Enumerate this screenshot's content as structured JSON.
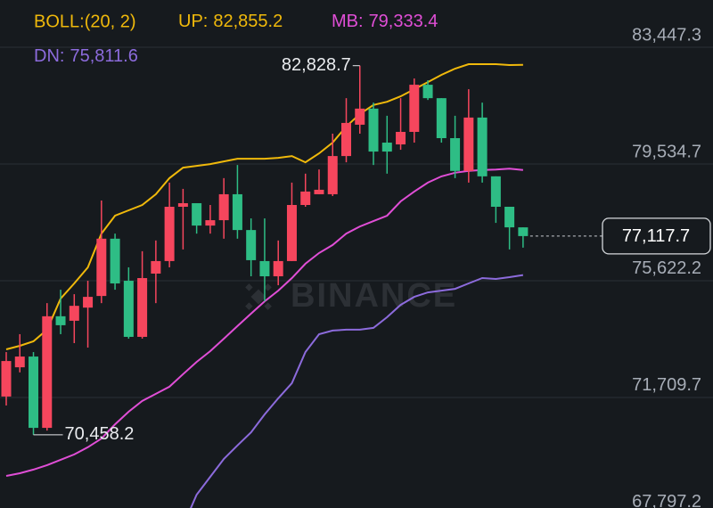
{
  "chart_data": {
    "type": "candlestick",
    "watermark": "BINANCE",
    "ylim": [
      68004,
      85030
    ],
    "yticks": [
      {
        "value": 83447.3,
        "label": "83,447.3"
      },
      {
        "value": 79534.7,
        "label": "79,534.7"
      },
      {
        "value": 75622.2,
        "label": "75,622.2"
      },
      {
        "value": 71709.7,
        "label": "71,709.7"
      },
      {
        "value": 67797.2,
        "label": "67,797.2"
      }
    ],
    "grid": true,
    "up_color": "#f6465d",
    "down_color": "#2ebd85",
    "candles": {
      "open": [
        71740,
        72720,
        73080,
        70690,
        74430,
        74280,
        74720,
        75110,
        77030,
        75620,
        73740,
        75860,
        76280,
        78100,
        78220,
        77470,
        77650,
        78520,
        77320,
        76280,
        75770,
        76280,
        78160,
        78520,
        78520,
        79800,
        80850,
        81390,
        80250,
        80190,
        80610,
        82190,
        81740,
        80400,
        79300,
        81090,
        79120,
        78100,
        77410
      ],
      "high": [
        73230,
        73830,
        73230,
        74870,
        75320,
        75170,
        75620,
        78310,
        77200,
        76070,
        76610,
        76970,
        78910,
        78700,
        78220,
        78160,
        79060,
        79500,
        77710,
        77710,
        76970,
        78910,
        79210,
        79350,
        80550,
        81740,
        82828.7,
        81590,
        81150,
        81740,
        82400,
        82340,
        81740,
        81150,
        82040,
        81590,
        79120,
        78100,
        77410
      ],
      "low": [
        71440,
        72550,
        70458.2,
        70600,
        73830,
        73530,
        73380,
        74870,
        75320,
        73680,
        73680,
        74870,
        76070,
        76670,
        77200,
        77200,
        77030,
        77030,
        75770,
        74930,
        75470,
        76280,
        78100,
        78520,
        78460,
        79590,
        80550,
        79500,
        79210,
        80010,
        80250,
        81680,
        80250,
        79060,
        78910,
        78910,
        77560,
        76670,
        76730
      ],
      "close": [
        72930,
        73080,
        70690,
        74430,
        74130,
        74780,
        75080,
        77030,
        75530,
        73740,
        75710,
        76280,
        78100,
        78220,
        77470,
        77650,
        78520,
        77320,
        76310,
        75770,
        76280,
        78160,
        78610,
        78670,
        79800,
        80910,
        81390,
        79950,
        79950,
        80610,
        82190,
        81740,
        80400,
        79300,
        81090,
        79120,
        78100,
        77410,
        77117.7
      ]
    },
    "indicator": {
      "label": "BOLL:(20, 2)",
      "color": "#f0b90b",
      "series": [
        {
          "name": "UP:",
          "color": "#f0b90b",
          "legend_value": {
            "value": 82855.2,
            "label": "82,855.2"
          },
          "values": [
            73320,
            73440,
            73590,
            73980,
            75020,
            75530,
            76070,
            77200,
            77800,
            77980,
            78160,
            78520,
            79060,
            79410,
            79470,
            79530,
            79620,
            79710,
            79710,
            79710,
            79740,
            79800,
            79590,
            79890,
            80250,
            80790,
            81210,
            81510,
            81620,
            81800,
            82040,
            82280,
            82520,
            82730,
            82880,
            82880,
            82880,
            82850,
            82855.2
          ]
        },
        {
          "name": "MB:",
          "color": "#e04ed6",
          "legend_value": {
            "value": 79333.4,
            "label": "79,333.4"
          },
          "values": [
            69080,
            69170,
            69290,
            69440,
            69620,
            69800,
            70040,
            70330,
            70810,
            71230,
            71590,
            71830,
            72070,
            72490,
            72900,
            73260,
            73680,
            74100,
            74520,
            74930,
            75290,
            75710,
            76190,
            76550,
            76820,
            77200,
            77440,
            77620,
            77800,
            78280,
            78610,
            78910,
            79120,
            79240,
            79300,
            79330,
            79350,
            79380,
            79333.4
          ]
        },
        {
          "name": "DN:",
          "color": "#8c6bdc",
          "legend_value": {
            "value": 75811.6,
            "label": "75,811.6"
          },
          "values": [
            null,
            null,
            null,
            null,
            null,
            null,
            null,
            null,
            null,
            null,
            null,
            null,
            null,
            67400,
            68450,
            69050,
            69650,
            70100,
            70540,
            71140,
            71680,
            72190,
            73230,
            73830,
            73950,
            73980,
            73980,
            74040,
            74400,
            74810,
            75080,
            75230,
            75290,
            75350,
            75530,
            75710,
            75680,
            75740,
            75811.6
          ]
        }
      ]
    },
    "annotations": [
      {
        "value": 82828.7,
        "label": "82,828.7"
      },
      {
        "value": 70458.2,
        "label": "70,458.2"
      }
    ],
    "last_price": {
      "value": 77117.7,
      "label": "77,117.7"
    }
  }
}
